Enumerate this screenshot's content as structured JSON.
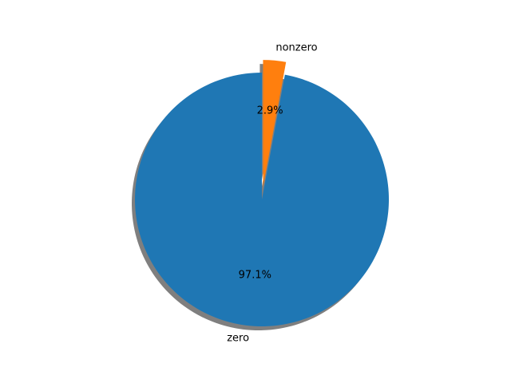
{
  "chart_data": {
    "type": "pie",
    "title": "",
    "categories": [
      "zero",
      "nonzero"
    ],
    "values": [
      97.1,
      2.9
    ],
    "labels": [
      "zero",
      "nonzero"
    ],
    "percent_labels": [
      "97.1%",
      "2.9%"
    ],
    "colors": [
      "#1f77b4",
      "#ff7f0e"
    ],
    "explode": [
      0,
      0.1
    ],
    "start_angle_deg": 90,
    "counterclockwise": true,
    "shadow": true,
    "legend": "none",
    "grid": false
  }
}
